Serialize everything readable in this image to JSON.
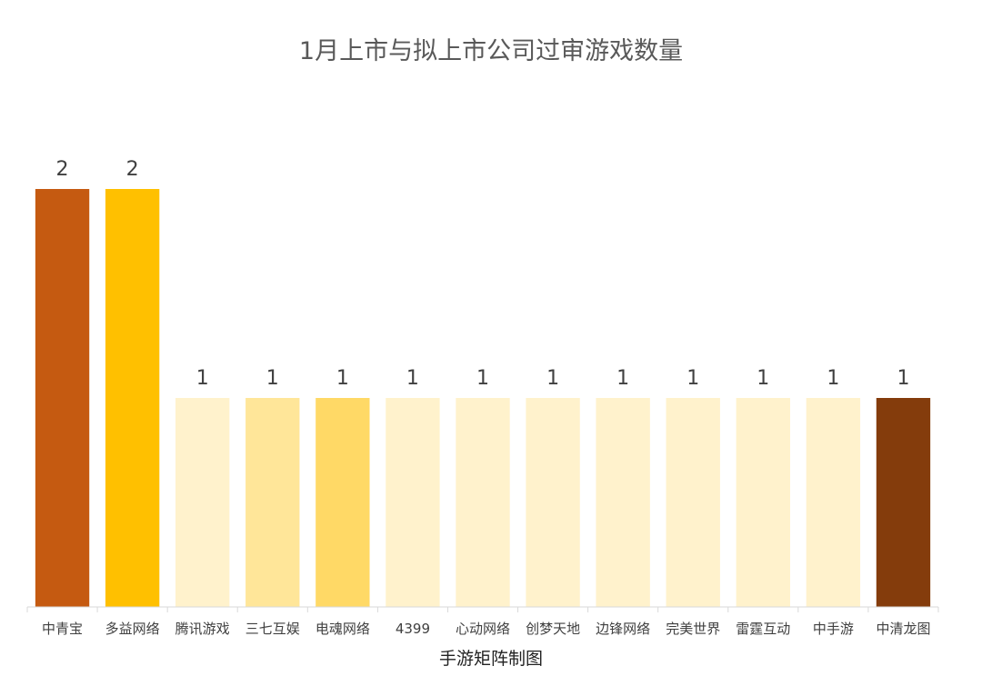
{
  "chart_data": {
    "type": "bar",
    "title": "1月上市与拟上市公司过审游戏数量",
    "footer": "手游矩阵制图",
    "categories": [
      "中青宝",
      "多益网络",
      "腾讯游戏",
      "三七互娱",
      "电魂网络",
      "4399",
      "心动网络",
      "创梦天地",
      "边锋网络",
      "完美世界",
      "雷霆互动",
      "中手游",
      "中清龙图"
    ],
    "values": [
      2,
      2,
      1,
      1,
      1,
      1,
      1,
      1,
      1,
      1,
      1,
      1,
      1
    ],
    "colors": [
      "#C55A11",
      "#FFC000",
      "#FFF2CC",
      "#FFE699",
      "#FFD966",
      "#FFF2CC",
      "#FFF2CC",
      "#FFF2CC",
      "#FFF2CC",
      "#FFF2CC",
      "#FFF2CC",
      "#FFF2CC",
      "#843C0C"
    ],
    "ylim": [
      0,
      2
    ],
    "grid": false,
    "legend": "none",
    "data_labels": true
  }
}
